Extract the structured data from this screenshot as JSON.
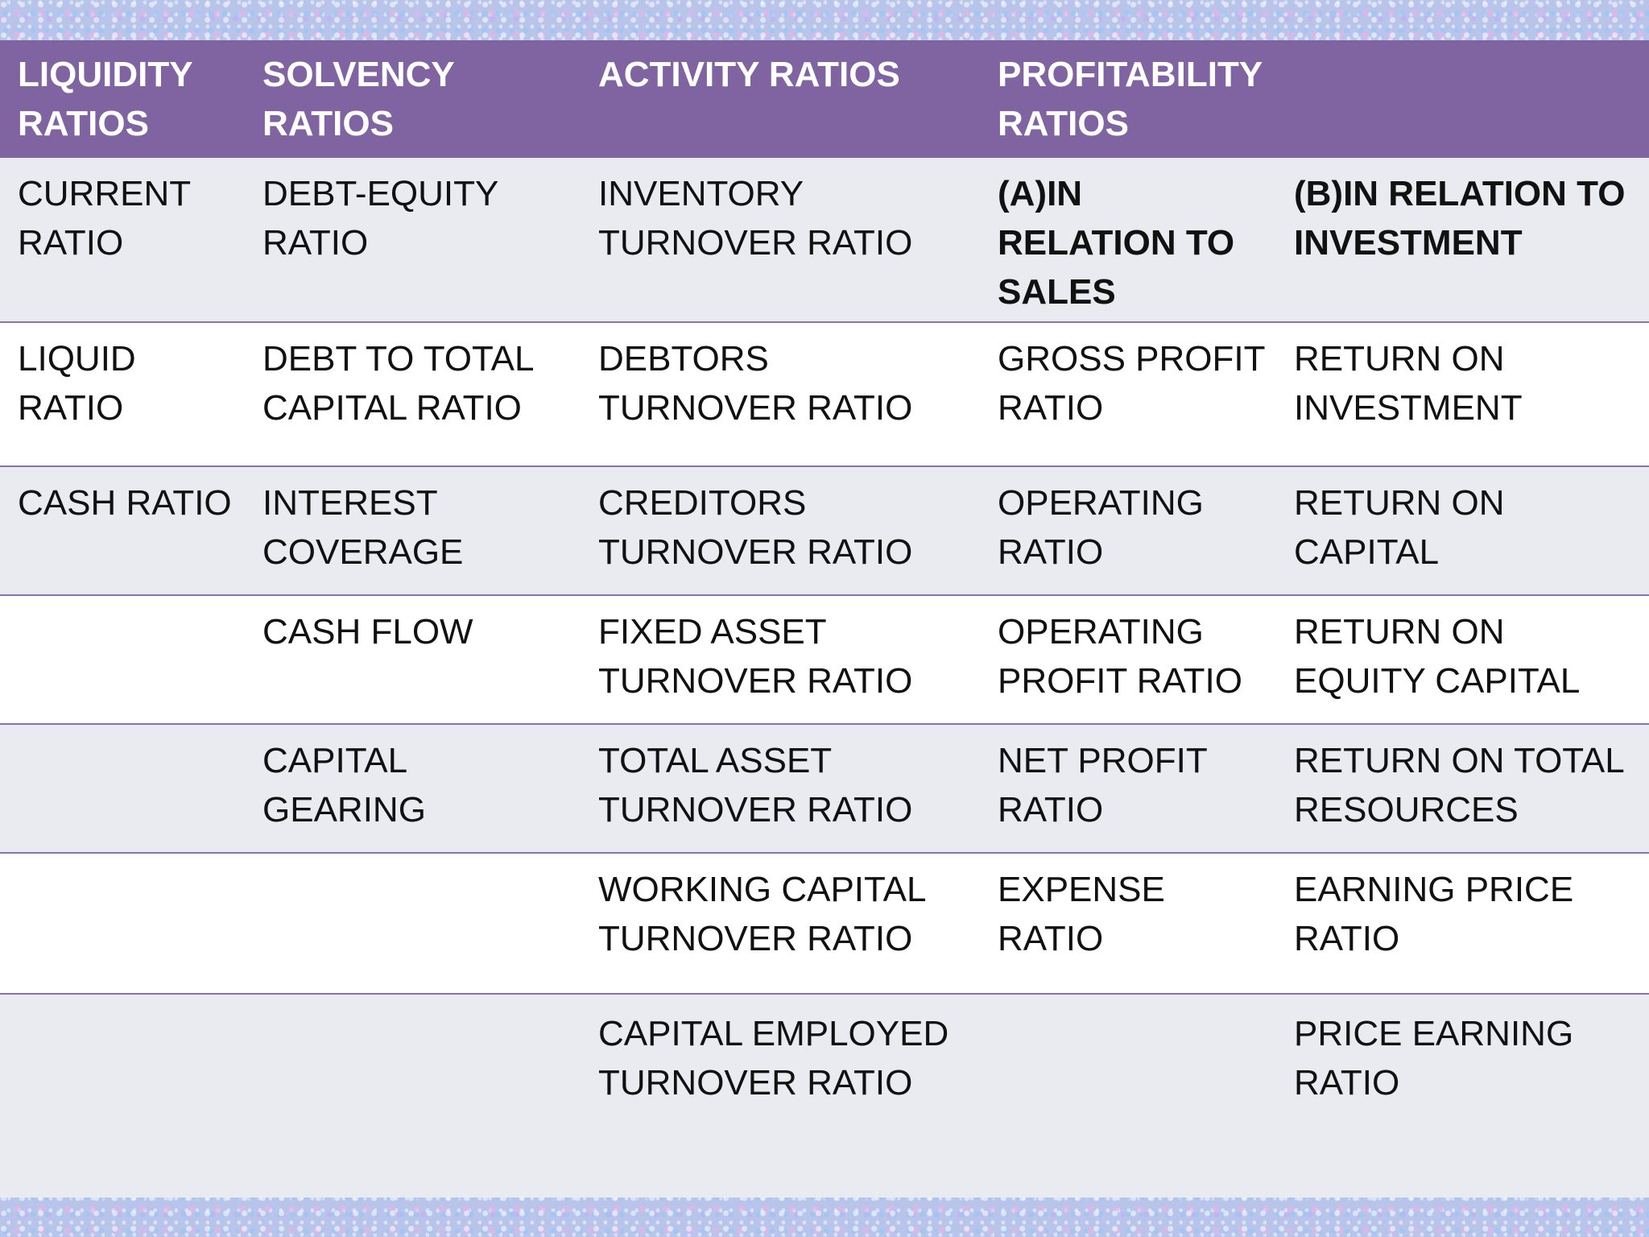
{
  "headers": [
    "LIQUIDITY RATIOS",
    "SOLVENCY RATIOS",
    "ACTIVITY RATIOS",
    "PROFITABILITY RATIOS",
    ""
  ],
  "rows": [
    [
      "CURRENT RATIO",
      "DEBT-EQUITY RATIO",
      "INVENTORY TURNOVER RATIO",
      "(A)IN RELATION TO SALES",
      "(B)IN RELATION TO INVESTMENT"
    ],
    [
      "LIQUID RATIO",
      "DEBT TO TOTAL CAPITAL RATIO",
      "DEBTORS TURNOVER RATIO",
      "GROSS PROFIT RATIO",
      "RETURN ON INVESTMENT"
    ],
    [
      "CASH RATIO",
      "INTEREST COVERAGE",
      "CREDITORS TURNOVER RATIO",
      "OPERATING RATIO",
      "RETURN ON CAPITAL"
    ],
    [
      "",
      "CASH FLOW",
      "FIXED ASSET TURNOVER RATIO",
      "OPERATING PROFIT RATIO",
      "RETURN ON EQUITY CAPITAL"
    ],
    [
      "",
      "CAPITAL GEARING",
      "TOTAL ASSET TURNOVER RATIO",
      "NET PROFIT RATIO",
      "RETURN ON TOTAL RESOURCES"
    ],
    [
      "",
      "",
      "WORKING CAPITAL TURNOVER RATIO",
      "EXPENSE RATIO",
      "EARNING PRICE RATIO"
    ],
    [
      "",
      "",
      "CAPITAL EMPLOYED TURNOVER RATIO",
      "",
      "PRICE EARNING RATIO"
    ]
  ],
  "colors": {
    "header_bg": "#8064a2",
    "row_light": "#eaeaf1",
    "row_white": "#ffffff",
    "divider": "#8a72b0"
  }
}
